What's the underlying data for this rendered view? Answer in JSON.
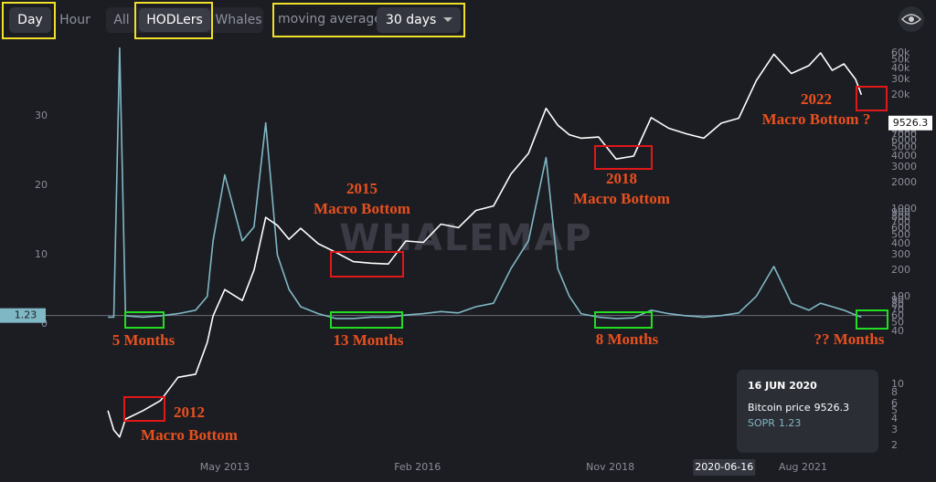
{
  "toolbar": {
    "interval": [
      "Day",
      "Hour"
    ],
    "cohort": [
      "All",
      "HODLers",
      "Whales"
    ],
    "ma_label": "moving average:",
    "ma_value": "30 days"
  },
  "chart_data": {
    "type": "line",
    "watermark": "WHALEMAP",
    "x": [
      "2011-09",
      "2011-10",
      "2011-11",
      "2011-12",
      "2012-03",
      "2012-06",
      "2012-09",
      "2012-12",
      "2013-02",
      "2013-03",
      "2013-05",
      "2013-08",
      "2013-10",
      "2013-12",
      "2014-02",
      "2014-04",
      "2014-06",
      "2014-09",
      "2014-12",
      "2015-03",
      "2015-06",
      "2015-09",
      "2015-12",
      "2016-03",
      "2016-06",
      "2016-09",
      "2016-12",
      "2017-03",
      "2017-06",
      "2017-09",
      "2017-12",
      "2018-02",
      "2018-04",
      "2018-06",
      "2018-09",
      "2018-12",
      "2019-03",
      "2019-06",
      "2019-09",
      "2019-12",
      "2020-03",
      "2020-06",
      "2020-09",
      "2020-12",
      "2021-03",
      "2021-06",
      "2021-09",
      "2021-11",
      "2022-01",
      "2022-03",
      "2022-05",
      "2022-06"
    ],
    "series": [
      {
        "name": "Bitcoin price",
        "color": "#ffffff",
        "axis": "y2",
        "values": [
          5,
          3,
          2.5,
          4,
          5,
          6.5,
          12,
          13,
          30,
          60,
          120,
          90,
          200,
          800,
          650,
          450,
          600,
          400,
          320,
          250,
          240,
          235,
          430,
          415,
          670,
          610,
          960,
          1080,
          2500,
          4300,
          14000,
          9000,
          7000,
          6400,
          6600,
          3700,
          4000,
          11000,
          8300,
          7200,
          6400,
          9500,
          10800,
          29000,
          58000,
          35000,
          43000,
          60000,
          38000,
          45000,
          30000,
          20000
        ]
      },
      {
        "name": "SOPR",
        "color": "#7fb8c4",
        "values": [
          1,
          1,
          39.8,
          1.2,
          1,
          1.2,
          1.5,
          2,
          4,
          12,
          21.5,
          12,
          14,
          29,
          10,
          5,
          2.5,
          1.5,
          0.8,
          0.8,
          1,
          1,
          1.3,
          1.5,
          1.8,
          1.6,
          2.5,
          3,
          8,
          12,
          24,
          8,
          4,
          1.5,
          1,
          0.8,
          0.9,
          2,
          1.5,
          1.2,
          1,
          1.23,
          1.6,
          4,
          8.3,
          3,
          2,
          3,
          2.5,
          2,
          1.3,
          1
        ]
      }
    ],
    "xlim": [
      "2011-01",
      "2022-10"
    ],
    "xticks": [
      {
        "value": "2013-05",
        "label": "May 2013"
      },
      {
        "value": "2016-02",
        "label": "Feb 2016"
      },
      {
        "value": "2018-11",
        "label": "Nov 2018"
      },
      {
        "value": "2021-08",
        "label": "Aug 2021"
      }
    ],
    "ylim": [
      0,
      40
    ],
    "yticks": [
      0,
      10,
      20,
      30
    ],
    "y2lim": [
      1.5,
      71000
    ],
    "y2log": true,
    "y2ticks": [
      2,
      3,
      4,
      5,
      6,
      8,
      10,
      40,
      50,
      60,
      70,
      80,
      90,
      100,
      200,
      300,
      400,
      500,
      600,
      700,
      800,
      900,
      1000,
      2000,
      3000,
      4000,
      5000,
      6000,
      7000,
      8000,
      {
        "value": 20000,
        "label": "20k"
      },
      {
        "value": 30000,
        "label": "30k"
      },
      {
        "value": 40000,
        "label": "40k"
      },
      {
        "value": 50000,
        "label": "50k"
      },
      {
        "value": 60000,
        "label": "60k"
      }
    ],
    "cursor": {
      "x": "2020-06-16",
      "sopr": 1.23,
      "price": 9526.3
    },
    "tooltip_date": "16 JUN 2020",
    "annotations": [
      "2012",
      "Macro Bottom",
      "2015",
      "Macro Bottom",
      "2018",
      "Macro Bottom",
      "2022",
      "Macro Bottom ?",
      "5 Months",
      "13 Months",
      "8 Months",
      "?? Months"
    ]
  }
}
